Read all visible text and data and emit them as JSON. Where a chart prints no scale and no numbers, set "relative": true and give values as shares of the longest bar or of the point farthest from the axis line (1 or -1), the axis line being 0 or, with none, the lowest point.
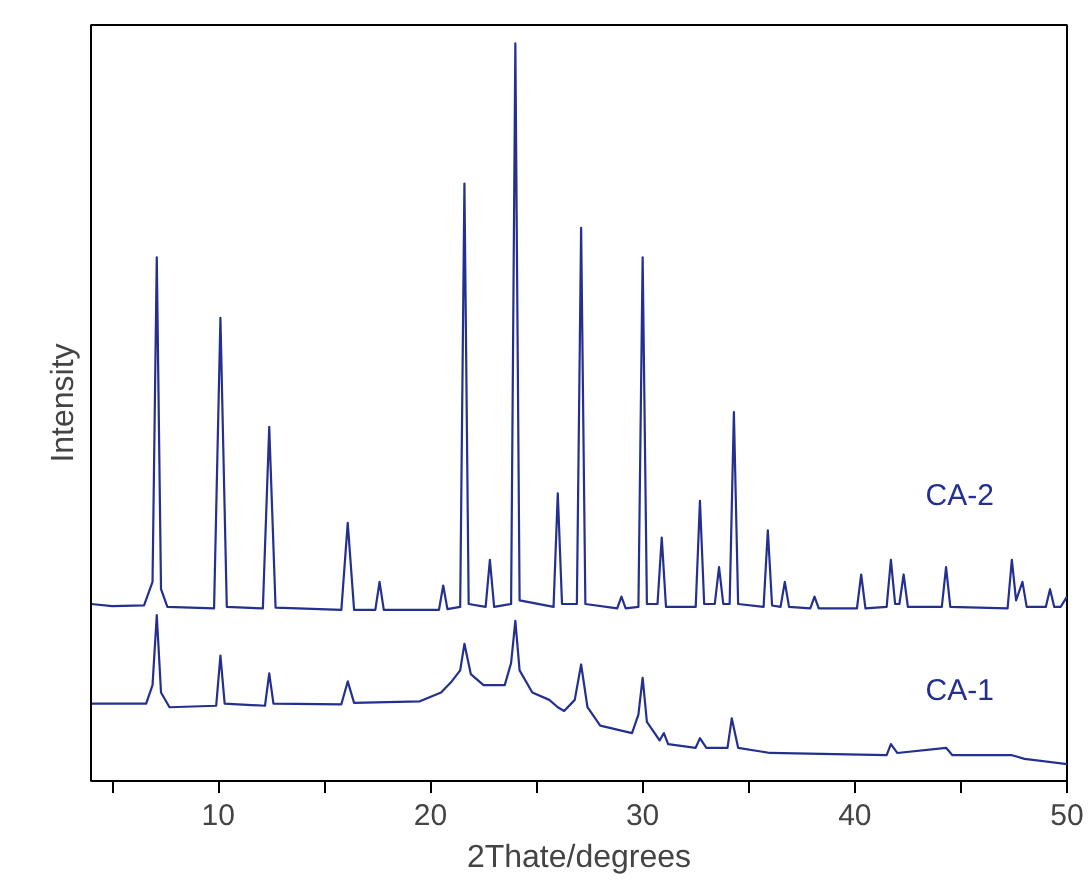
{
  "chart_data": {
    "type": "line",
    "xlabel": "2Thate/degrees",
    "ylabel": "Intensity",
    "relative": true,
    "xlim": [
      4,
      50
    ],
    "xticks": [
      {
        "value": 5,
        "label": null
      },
      10,
      {
        "value": 15,
        "label": null
      },
      20,
      {
        "value": 25,
        "label": null
      },
      30,
      {
        "value": 35,
        "label": null
      },
      40,
      {
        "value": 45,
        "label": null
      },
      50
    ],
    "grid": false,
    "legend": false,
    "series": [
      {
        "name": "CA-2",
        "color": "#23308f",
        "x": [
          4,
          5,
          6.5,
          6.9,
          7.1,
          7.3,
          7.6,
          9.8,
          10.1,
          10.4,
          12.1,
          12.4,
          12.7,
          15.8,
          16.1,
          16.4,
          17.4,
          17.6,
          17.8,
          20.4,
          20.6,
          20.8,
          21.4,
          21.6,
          21.8,
          22.6,
          22.8,
          23.0,
          23.8,
          24.0,
          24.2,
          25.8,
          26.0,
          26.2,
          26.9,
          27.1,
          27.3,
          28.8,
          29.0,
          29.2,
          29.8,
          30.0,
          30.2,
          30.7,
          30.9,
          31.1,
          32.5,
          32.7,
          32.9,
          33.4,
          33.6,
          33.8,
          34.1,
          34.3,
          34.5,
          35.7,
          35.9,
          36.1,
          36.5,
          36.7,
          36.9,
          37.9,
          38.1,
          38.3,
          40.1,
          40.3,
          40.5,
          41.5,
          41.7,
          41.9,
          42.1,
          42.3,
          42.5,
          44.1,
          44.3,
          44.5,
          47.2,
          47.4,
          47.6,
          47.9,
          48.1,
          49.0,
          49.2,
          49.4,
          49.7,
          50
        ],
        "values": [
          0.24,
          0.237,
          0.238,
          0.27,
          0.71,
          0.26,
          0.236,
          0.234,
          0.628,
          0.236,
          0.234,
          0.48,
          0.235,
          0.232,
          0.35,
          0.232,
          0.232,
          0.27,
          0.232,
          0.232,
          0.265,
          0.233,
          0.236,
          0.81,
          0.24,
          0.236,
          0.3,
          0.236,
          0.24,
          1.0,
          0.245,
          0.236,
          0.39,
          0.24,
          0.24,
          0.75,
          0.24,
          0.234,
          0.25,
          0.234,
          0.236,
          0.71,
          0.24,
          0.24,
          0.33,
          0.236,
          0.236,
          0.38,
          0.24,
          0.24,
          0.29,
          0.24,
          0.24,
          0.5,
          0.24,
          0.236,
          0.34,
          0.238,
          0.236,
          0.27,
          0.236,
          0.234,
          0.25,
          0.234,
          0.234,
          0.28,
          0.234,
          0.236,
          0.3,
          0.24,
          0.24,
          0.28,
          0.236,
          0.236,
          0.29,
          0.236,
          0.234,
          0.3,
          0.245,
          0.27,
          0.236,
          0.236,
          0.26,
          0.236,
          0.236,
          0.25
        ]
      },
      {
        "name": "CA-1",
        "color": "#23308f",
        "x": [
          4,
          6.6,
          6.9,
          7.1,
          7.3,
          7.7,
          9.9,
          10.1,
          10.3,
          12.2,
          12.4,
          12.6,
          15.8,
          16.1,
          16.4,
          19.5,
          20.5,
          21.0,
          21.4,
          21.6,
          21.9,
          22.5,
          23.5,
          23.8,
          24.0,
          24.2,
          24.8,
          25.6,
          26.0,
          26.3,
          26.8,
          27.1,
          27.4,
          28,
          29.5,
          29.8,
          30.0,
          30.2,
          30.8,
          31.0,
          31.2,
          32.5,
          32.7,
          33,
          34.0,
          34.2,
          34.5,
          36,
          41.5,
          41.7,
          42,
          44.3,
          44.6,
          47.4,
          48,
          50
        ],
        "values": [
          0.105,
          0.105,
          0.13,
          0.225,
          0.12,
          0.1,
          0.102,
          0.17,
          0.105,
          0.102,
          0.146,
          0.105,
          0.104,
          0.135,
          0.106,
          0.108,
          0.12,
          0.135,
          0.15,
          0.186,
          0.145,
          0.13,
          0.13,
          0.16,
          0.217,
          0.15,
          0.12,
          0.11,
          0.1,
          0.095,
          0.11,
          0.158,
          0.1,
          0.075,
          0.065,
          0.09,
          0.14,
          0.08,
          0.055,
          0.065,
          0.05,
          0.045,
          0.058,
          0.045,
          0.045,
          0.085,
          0.045,
          0.038,
          0.035,
          0.05,
          0.038,
          0.045,
          0.035,
          0.035,
          0.03,
          0.023
        ]
      }
    ]
  }
}
